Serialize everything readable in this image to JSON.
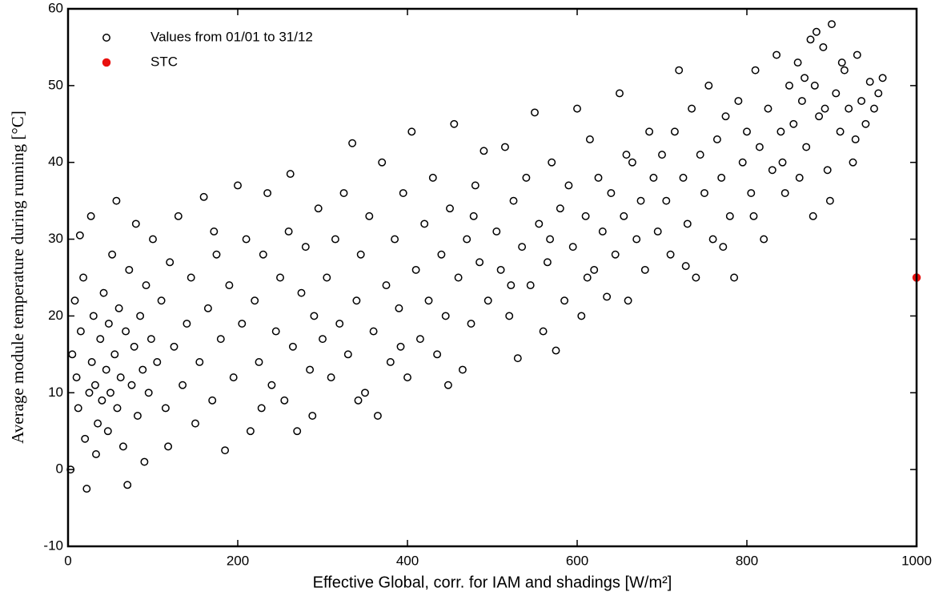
{
  "chart_data": {
    "type": "scatter",
    "xlabel": "Effective Global, corr. for IAM and shadings [W/m²]",
    "ylabel": "Average module temperature during running [°C]",
    "xlim": [
      0,
      1000
    ],
    "ylim": [
      -10,
      60
    ],
    "xticks": [
      0,
      200,
      400,
      600,
      800,
      1000
    ],
    "yticks": [
      -10,
      0,
      10,
      20,
      30,
      40,
      50,
      60
    ],
    "legend": "upper left",
    "series": [
      {
        "name": "Values from 01/01 to 31/12",
        "color": "#000000",
        "marker": "open",
        "x": [
          5,
          8,
          10,
          12,
          15,
          18,
          20,
          22,
          25,
          28,
          30,
          32,
          35,
          38,
          40,
          42,
          45,
          48,
          50,
          52,
          55,
          58,
          60,
          62,
          65,
          68,
          70,
          72,
          75,
          78,
          80,
          82,
          85,
          88,
          90,
          92,
          95,
          98,
          100,
          3,
          14,
          27,
          47,
          33,
          57,
          105,
          110,
          115,
          120,
          125,
          130,
          135,
          140,
          145,
          150,
          155,
          160,
          165,
          170,
          175,
          180,
          185,
          190,
          195,
          200,
          205,
          210,
          215,
          220,
          225,
          230,
          235,
          240,
          245,
          250,
          255,
          260,
          265,
          270,
          275,
          280,
          285,
          290,
          295,
          300,
          118,
          172,
          228,
          262,
          288,
          305,
          310,
          315,
          320,
          325,
          330,
          335,
          340,
          345,
          350,
          355,
          360,
          365,
          370,
          375,
          380,
          385,
          390,
          395,
          400,
          405,
          410,
          415,
          420,
          425,
          430,
          435,
          440,
          445,
          450,
          455,
          460,
          465,
          470,
          475,
          480,
          485,
          490,
          495,
          342,
          392,
          448,
          478,
          505,
          510,
          515,
          520,
          525,
          530,
          535,
          540,
          545,
          550,
          555,
          560,
          565,
          570,
          575,
          580,
          585,
          590,
          595,
          600,
          605,
          610,
          615,
          620,
          625,
          630,
          635,
          640,
          645,
          650,
          655,
          660,
          665,
          670,
          675,
          680,
          685,
          690,
          695,
          700,
          522,
          568,
          612,
          658,
          705,
          710,
          715,
          720,
          725,
          730,
          735,
          740,
          745,
          750,
          755,
          760,
          765,
          770,
          775,
          780,
          785,
          790,
          795,
          800,
          805,
          810,
          815,
          820,
          825,
          830,
          835,
          840,
          845,
          850,
          728,
          772,
          808,
          842,
          855,
          860,
          865,
          870,
          875,
          880,
          885,
          890,
          895,
          900,
          905,
          910,
          915,
          920,
          925,
          930,
          935,
          940,
          945,
          950,
          955,
          960,
          862,
          878,
          898,
          882,
          912,
          928,
          868,
          892
        ],
        "y": [
          15,
          22,
          12,
          8,
          18,
          25,
          4,
          -2.5,
          10,
          14,
          20,
          11,
          6,
          17,
          9,
          23,
          13,
          19,
          10,
          28,
          15,
          8,
          21,
          12,
          3,
          18,
          -2,
          26,
          11,
          16,
          32,
          7,
          20,
          13,
          1,
          24,
          10,
          17,
          30,
          0,
          30.5,
          33,
          5,
          2,
          35,
          14,
          22,
          8,
          27,
          16,
          33,
          11,
          19,
          25,
          6,
          14,
          35.5,
          21,
          9,
          28,
          17,
          2.5,
          24,
          12,
          37,
          19,
          30,
          5,
          22,
          14,
          28,
          36,
          11,
          18,
          25,
          9,
          31,
          16,
          5,
          23,
          29,
          13,
          20,
          34,
          17,
          3,
          31,
          8,
          38.5,
          7,
          25,
          12,
          30,
          19,
          36,
          15,
          42.5,
          22,
          28,
          10,
          33,
          18,
          7,
          40,
          24,
          14,
          30,
          21,
          36,
          12,
          44,
          26,
          17,
          32,
          22,
          38,
          15,
          28,
          20,
          34,
          45,
          25,
          13,
          30,
          19,
          37,
          27,
          41.5,
          22,
          9,
          16,
          11,
          33,
          31,
          26,
          42,
          20,
          35,
          14.5,
          29,
          38,
          24,
          46.5,
          32,
          18,
          27,
          40,
          15.5,
          34,
          22,
          37,
          29,
          47,
          20,
          33,
          43,
          26,
          38,
          31,
          22.5,
          36,
          28,
          49,
          33,
          22,
          40,
          30,
          35,
          26,
          44,
          38,
          31,
          41,
          24,
          30,
          25,
          41,
          35,
          28,
          44,
          52,
          38,
          32,
          47,
          25,
          41,
          36,
          50,
          30,
          43,
          38,
          46,
          33,
          25,
          48,
          40,
          44,
          36,
          52,
          42,
          30,
          47,
          39,
          54,
          44,
          36,
          50,
          26.5,
          29,
          33,
          40,
          45,
          53,
          48,
          42,
          56,
          50,
          46,
          55,
          39,
          58,
          49,
          44,
          52,
          47,
          40,
          54,
          48,
          45,
          50.5,
          47,
          49,
          51,
          38,
          33,
          35,
          57,
          53,
          43,
          51,
          47
        ]
      },
      {
        "name": "STC",
        "color": "#e8110f",
        "marker": "filled",
        "x": [
          1000
        ],
        "y": [
          25
        ]
      }
    ]
  }
}
